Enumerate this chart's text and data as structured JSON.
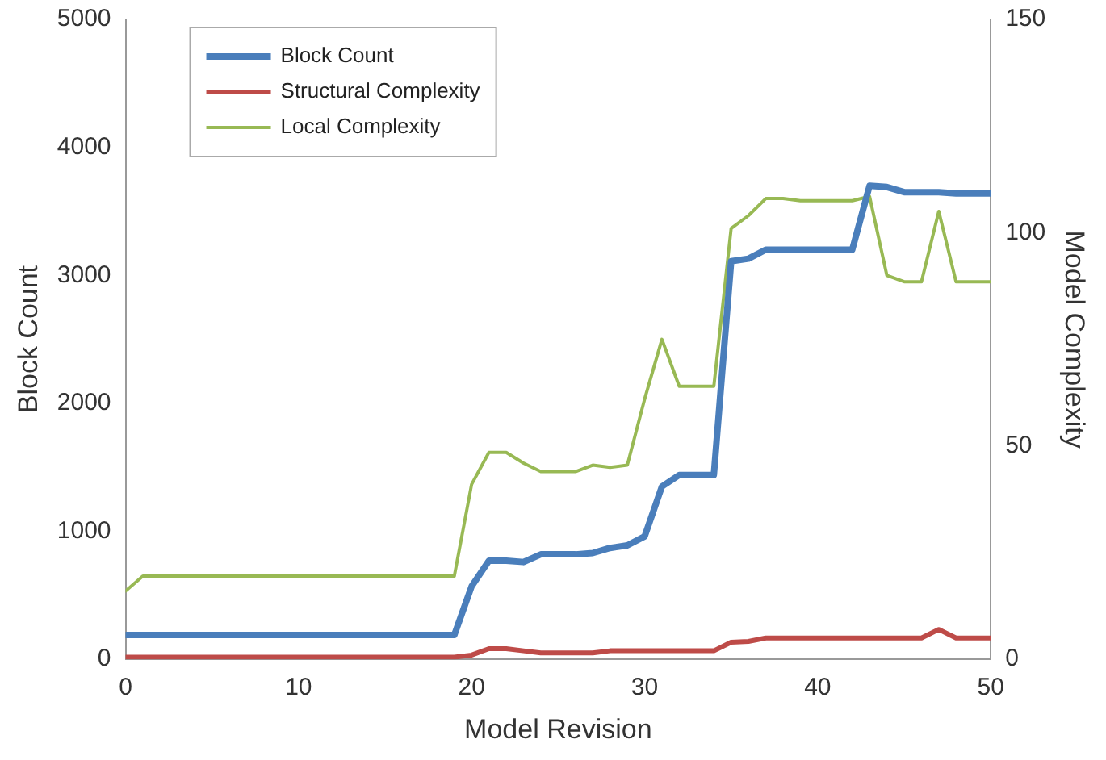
{
  "chart_data": {
    "type": "line",
    "xlabel": "Model Revision",
    "ylabel": "Block Count",
    "y2label": "Model Complexity",
    "x": [
      0,
      1,
      2,
      3,
      4,
      5,
      6,
      7,
      8,
      9,
      10,
      11,
      12,
      13,
      14,
      15,
      16,
      17,
      18,
      19,
      20,
      21,
      22,
      23,
      24,
      25,
      26,
      27,
      28,
      29,
      30,
      31,
      32,
      33,
      34,
      35,
      36,
      37,
      38,
      39,
      40,
      41,
      42,
      43,
      44,
      45,
      46,
      47,
      48,
      49,
      50
    ],
    "series": [
      {
        "name": "Block Count",
        "color": "#4a7ebb",
        "values": [
          190,
          190,
          190,
          190,
          190,
          190,
          190,
          190,
          190,
          190,
          190,
          190,
          190,
          190,
          190,
          190,
          190,
          190,
          190,
          190,
          570,
          770,
          770,
          760,
          820,
          820,
          820,
          830,
          870,
          890,
          960,
          1350,
          1440,
          1440,
          1440,
          3110,
          3130,
          3200,
          3200,
          3200,
          3200,
          3200,
          3200,
          3700,
          3690,
          3650,
          3650,
          3650,
          3640,
          3640,
          3640
        ]
      },
      {
        "name": "Structural Complexity",
        "color": "#be4b48",
        "axis": "y2",
        "values": [
          0.5,
          0.5,
          0.5,
          0.5,
          0.5,
          0.5,
          0.5,
          0.5,
          0.5,
          0.5,
          0.5,
          0.5,
          0.5,
          0.5,
          0.5,
          0.5,
          0.5,
          0.5,
          0.5,
          0.5,
          1,
          2.5,
          2.5,
          2,
          1.5,
          1.5,
          1.5,
          1.5,
          2,
          2,
          2,
          2,
          2,
          2,
          2,
          4,
          4.2,
          5,
          5,
          5,
          5,
          5,
          5,
          5,
          5,
          5,
          5,
          7,
          5,
          5,
          5
        ]
      },
      {
        "name": "Local Complexity",
        "color": "#98b954",
        "axis": "y2",
        "values": [
          16,
          19.5,
          19.5,
          19.5,
          19.5,
          19.5,
          19.5,
          19.5,
          19.5,
          19.5,
          19.5,
          19.5,
          19.5,
          19.5,
          19.5,
          19.5,
          19.5,
          19.5,
          19.5,
          19.5,
          41,
          48.5,
          48.5,
          46,
          44,
          44,
          44,
          45.5,
          45,
          45.5,
          61,
          75,
          64,
          64,
          64,
          101,
          104,
          108,
          108,
          107.5,
          107.5,
          107.5,
          107.5,
          108.5,
          90,
          88.5,
          88.5,
          105,
          88.5,
          88.5,
          88.5
        ]
      }
    ],
    "xlim": [
      0,
      50
    ],
    "xticks": [
      0,
      10,
      20,
      30,
      40,
      50
    ],
    "ylim": [
      0,
      5000
    ],
    "yticks": [
      0,
      1000,
      2000,
      3000,
      4000,
      5000
    ],
    "y2lim": [
      0,
      150
    ],
    "y2ticks": [
      0,
      50,
      100,
      150
    ],
    "grid": false,
    "legend": "top left",
    "marker": "none"
  }
}
